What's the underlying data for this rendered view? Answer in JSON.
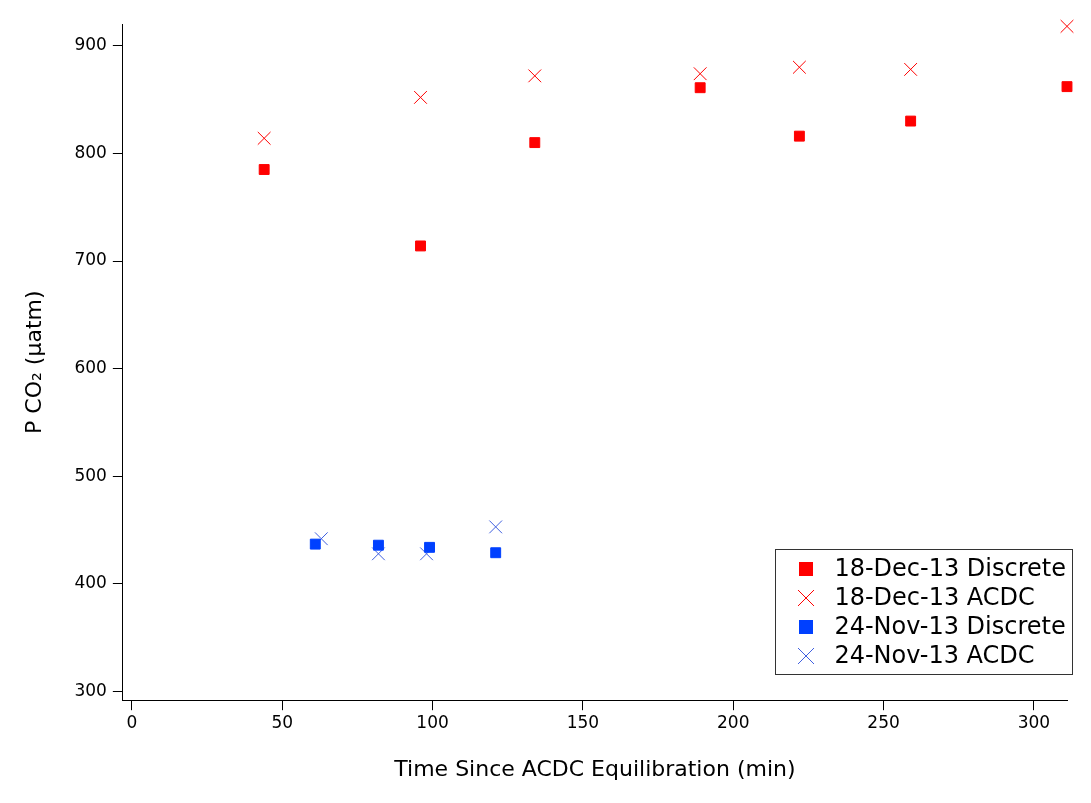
{
  "chart_data": {
    "type": "scatter",
    "xlabel": "Time Since ACDC Equilibration (min)",
    "ylabel": "P CO₂ (μatm)",
    "xlim": [
      -3,
      311
    ],
    "xticks": [
      0,
      50,
      100,
      150,
      200,
      250,
      300
    ],
    "ylim": [
      292,
      920
    ],
    "yticks": [
      300,
      400,
      500,
      600,
      700,
      800,
      900
    ],
    "grid": false,
    "legend": "bottom right",
    "series": [
      {
        "name": "18-Dec-13 Discrete",
        "color": "#ff0000",
        "marker": "square",
        "x": [
          44,
          96,
          134,
          189,
          222,
          259,
          311
        ],
        "values": [
          785,
          714,
          810,
          861,
          816,
          830,
          862
        ]
      },
      {
        "name": "18-Dec-13 ACDC",
        "color": "#ff0000",
        "marker": "cross",
        "x": [
          44,
          96,
          134,
          189,
          222,
          259,
          311
        ],
        "values": [
          814,
          852,
          872,
          874,
          880,
          878,
          918
        ]
      },
      {
        "name": "24-Nov-13 Discrete",
        "color": "#0040ff",
        "marker": "square",
        "x": [
          61,
          82,
          99,
          121
        ],
        "values": [
          437,
          436,
          434,
          429
        ]
      },
      {
        "name": "24-Nov-13 ACDC",
        "color": "#4060e0",
        "marker": "cross",
        "x": [
          63,
          82,
          98,
          121
        ],
        "values": [
          442,
          428,
          428,
          453
        ]
      }
    ]
  }
}
